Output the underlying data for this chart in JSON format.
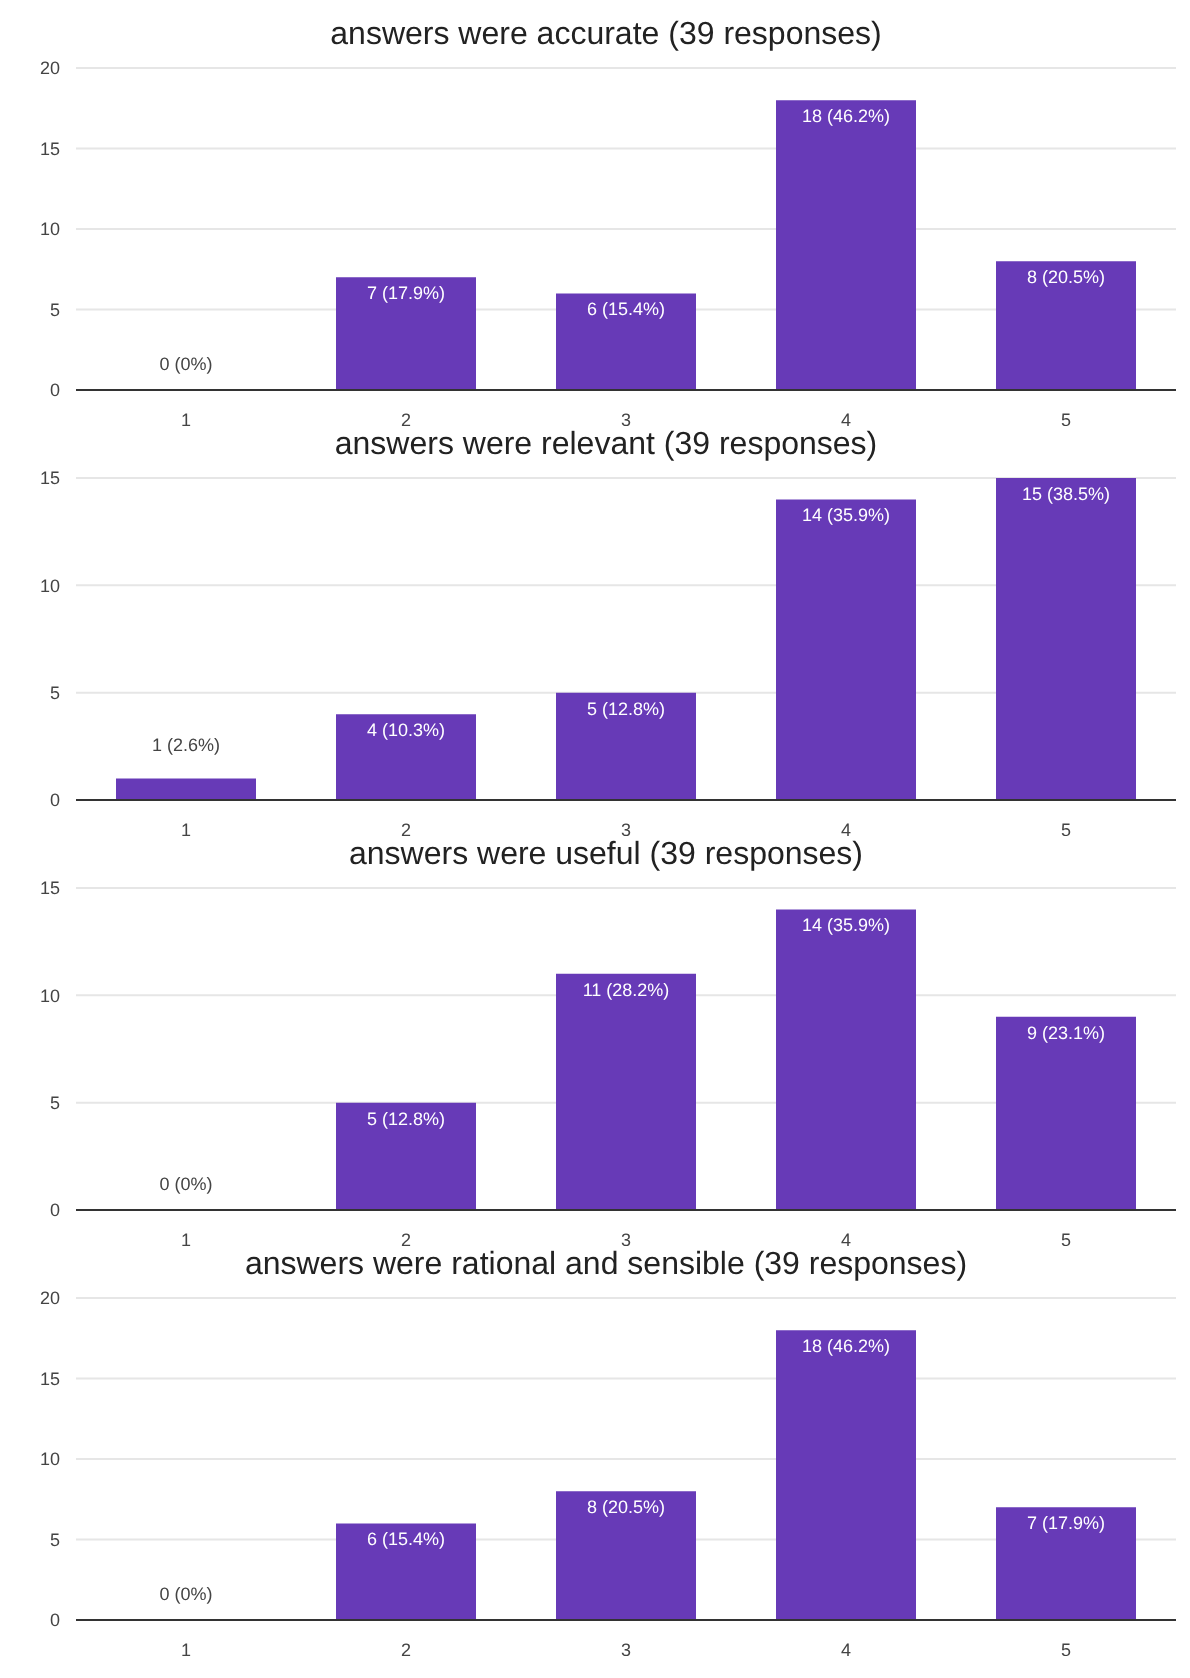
{
  "chart_data": [
    {
      "type": "bar",
      "title": "answers were accurate (39 responses)",
      "categories": [
        "1",
        "2",
        "3",
        "4",
        "5"
      ],
      "values": [
        0,
        7,
        6,
        18,
        8
      ],
      "value_labels": [
        "0 (0%)",
        "7 (17.9%)",
        "6 (15.4%)",
        "18 (46.2%)",
        "8 (20.5%)"
      ],
      "color": "#673ab7",
      "ylim": [
        0,
        20
      ],
      "yticks": [
        0,
        5,
        10,
        15,
        20
      ],
      "grid": "y"
    },
    {
      "type": "bar",
      "title": "answers were relevant (39 responses)",
      "categories": [
        "1",
        "2",
        "3",
        "4",
        "5"
      ],
      "values": [
        1,
        4,
        5,
        14,
        15
      ],
      "value_labels": [
        "1 (2.6%)",
        "4 (10.3%)",
        "5 (12.8%)",
        "14 (35.9%)",
        "15 (38.5%)"
      ],
      "color": "#673ab7",
      "ylim": [
        0,
        15
      ],
      "yticks": [
        0,
        5,
        10,
        15
      ],
      "grid": "y"
    },
    {
      "type": "bar",
      "title": "answers were useful (39 responses)",
      "categories": [
        "1",
        "2",
        "3",
        "4",
        "5"
      ],
      "values": [
        0,
        5,
        11,
        14,
        9
      ],
      "value_labels": [
        "0 (0%)",
        "5 (12.8%)",
        "11 (28.2%)",
        "14 (35.9%)",
        "9 (23.1%)"
      ],
      "color": "#673ab7",
      "ylim": [
        0,
        15
      ],
      "yticks": [
        0,
        5,
        10,
        15
      ],
      "grid": "y"
    },
    {
      "type": "bar",
      "title": "answers were rational and sensible (39 responses)",
      "categories": [
        "1",
        "2",
        "3",
        "4",
        "5"
      ],
      "values": [
        0,
        6,
        8,
        18,
        7
      ],
      "value_labels": [
        "0 (0%)",
        "6 (15.4%)",
        "8 (20.5%)",
        "18 (46.2%)",
        "7 (17.9%)"
      ],
      "color": "#673ab7",
      "ylim": [
        0,
        20
      ],
      "yticks": [
        0,
        5,
        10,
        15,
        20
      ],
      "grid": "y"
    }
  ]
}
